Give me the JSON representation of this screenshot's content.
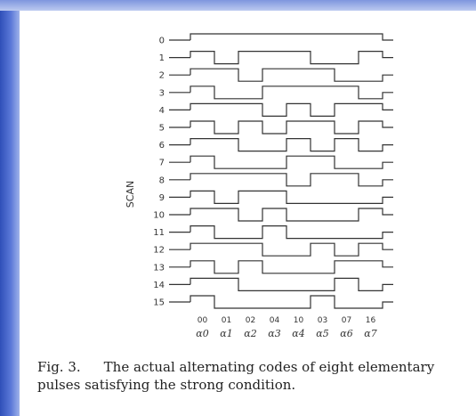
{
  "figure": {
    "y_axis_label": "SCAN",
    "rows": [
      {
        "label": "0",
        "bits": [
          1,
          1,
          1,
          1,
          1,
          1,
          1,
          1
        ]
      },
      {
        "label": "1",
        "bits": [
          1,
          0,
          1,
          1,
          1,
          0,
          0,
          1
        ]
      },
      {
        "label": "2",
        "bits": [
          1,
          1,
          0,
          1,
          1,
          1,
          0,
          0
        ]
      },
      {
        "label": "3",
        "bits": [
          1,
          0,
          0,
          1,
          1,
          1,
          1,
          0
        ]
      },
      {
        "label": "4",
        "bits": [
          1,
          1,
          1,
          0,
          1,
          0,
          1,
          1
        ]
      },
      {
        "label": "5",
        "bits": [
          1,
          0,
          1,
          0,
          1,
          1,
          0,
          1
        ]
      },
      {
        "label": "6",
        "bits": [
          1,
          1,
          0,
          0,
          1,
          0,
          1,
          0
        ]
      },
      {
        "label": "7",
        "bits": [
          1,
          0,
          0,
          0,
          1,
          1,
          0,
          0
        ]
      },
      {
        "label": "8",
        "bits": [
          1,
          1,
          1,
          1,
          0,
          1,
          1,
          0
        ]
      },
      {
        "label": "9",
        "bits": [
          1,
          0,
          1,
          1,
          0,
          0,
          0,
          0
        ]
      },
      {
        "label": "10",
        "bits": [
          1,
          1,
          0,
          1,
          0,
          0,
          0,
          1
        ]
      },
      {
        "label": "11",
        "bits": [
          1,
          0,
          0,
          1,
          0,
          0,
          0,
          0
        ]
      },
      {
        "label": "12",
        "bits": [
          1,
          1,
          1,
          0,
          0,
          1,
          0,
          1
        ]
      },
      {
        "label": "13",
        "bits": [
          1,
          0,
          1,
          0,
          0,
          0,
          1,
          1
        ]
      },
      {
        "label": "14",
        "bits": [
          1,
          1,
          0,
          0,
          0,
          0,
          1,
          0
        ]
      },
      {
        "label": "15",
        "bits": [
          1,
          0,
          0,
          0,
          0,
          1,
          0,
          0
        ]
      }
    ],
    "codes": [
      "00",
      "01",
      "02",
      "04",
      "10",
      "03",
      "07",
      "16"
    ],
    "alphas": [
      "α0",
      "α1",
      "α2",
      "α3",
      "α4",
      "α5",
      "α6",
      "α7"
    ]
  },
  "caption": {
    "label": "Fig. 3.",
    "text": "The actual alternating codes of eight elementary pulses satisfying the strong condition."
  },
  "colors": {
    "side_bar": "#3d5cc4",
    "ink": "#333333"
  }
}
